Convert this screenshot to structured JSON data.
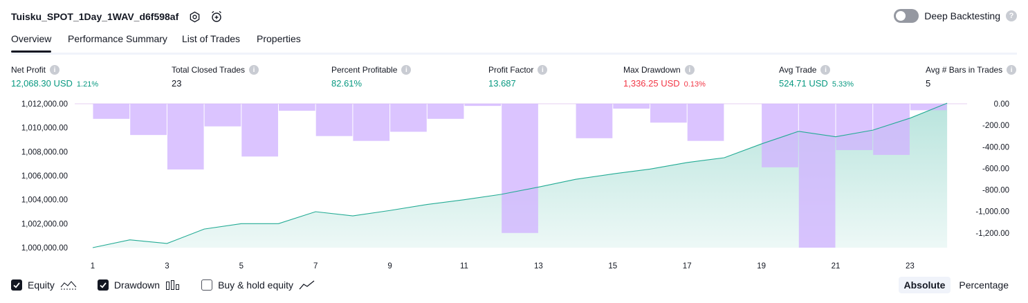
{
  "header": {
    "title": "Tuisku_SPOT_1Day_1WAV_d6f598af",
    "deep_backtesting_label": "Deep Backtesting",
    "help_glyph": "?"
  },
  "tabs": [
    {
      "label": "Overview",
      "active": true
    },
    {
      "label": "Performance Summary",
      "active": false
    },
    {
      "label": "List of Trades",
      "active": false
    },
    {
      "label": "Properties",
      "active": false
    }
  ],
  "metrics": [
    {
      "label": "Net Profit",
      "value": "12,068.30 USD",
      "pct": "1.21%",
      "color": "green"
    },
    {
      "label": "Total Closed Trades",
      "value": "23",
      "pct": "",
      "color": "dark"
    },
    {
      "label": "Percent Profitable",
      "value": "82.61%",
      "pct": "",
      "color": "green"
    },
    {
      "label": "Profit Factor",
      "value": "13.687",
      "pct": "",
      "color": "green"
    },
    {
      "label": "Max Drawdown",
      "value": "1,336.25 USD",
      "pct": "0.13%",
      "color": "red"
    },
    {
      "label": "Avg Trade",
      "value": "524.71 USD",
      "pct": "5.33%",
      "color": "green"
    },
    {
      "label": "Avg # Bars in Trades",
      "value": "5",
      "pct": "",
      "color": "dark"
    }
  ],
  "info_glyph": "i",
  "chart_data": {
    "type": "area",
    "x_ticks": [
      1,
      3,
      5,
      7,
      9,
      11,
      13,
      15,
      17,
      19,
      21,
      23
    ],
    "left_ticks": [
      "1,012,000.00",
      "1,010,000.00",
      "1,008,000.00",
      "1,006,000.00",
      "1,004,000.00",
      "1,002,000.00",
      "1,000,000.00"
    ],
    "left_tick_values": [
      1012000,
      1010000,
      1008000,
      1006000,
      1004000,
      1002000,
      1000000
    ],
    "right_ticks": [
      "0.00",
      "-200.00",
      "-400.00",
      "-600.00",
      "-800.00",
      "-1,000.00",
      "-1,200.00"
    ],
    "right_tick_values": [
      0,
      -200,
      -400,
      -600,
      -800,
      -1000,
      -1200
    ],
    "left_ylim": [
      1000000,
      1012000
    ],
    "right_ylim": [
      -1336.25,
      0
    ],
    "series": [
      {
        "name": "Equity",
        "color": "#22ab94",
        "x": [
          1,
          2,
          3,
          4,
          5,
          6,
          7,
          8,
          9,
          10,
          11,
          12,
          13,
          14,
          15,
          16,
          17,
          18,
          19,
          20,
          21,
          22,
          23,
          24
        ],
        "values": [
          1000000,
          1000650,
          1000350,
          1001550,
          1002000,
          1002000,
          1003000,
          1002650,
          1003100,
          1003600,
          1004000,
          1004450,
          1005050,
          1005700,
          1006150,
          1006550,
          1007100,
          1007500,
          1008650,
          1009700,
          1009250,
          1009800,
          1010800,
          1012050
        ]
      },
      {
        "name": "Drawdown",
        "color": "#d1b3ff",
        "x": [
          2,
          3,
          4,
          5,
          6,
          7,
          8,
          9,
          10,
          11,
          12,
          13,
          14,
          15,
          16,
          17,
          18,
          19,
          20,
          21,
          22,
          23,
          24
        ],
        "values": [
          -140,
          -290,
          -610,
          -210,
          -490,
          -65,
          -300,
          -345,
          -260,
          -140,
          -20,
          -1200,
          0,
          -320,
          -45,
          -175,
          -345,
          0,
          -590,
          -1336.25,
          -430,
          -475,
          -60
        ]
      }
    ]
  },
  "legend": {
    "equity_label": "Equity",
    "drawdown_label": "Drawdown",
    "buyhold_label": "Buy & hold equity",
    "equity_checked": true,
    "drawdown_checked": true,
    "buyhold_checked": false
  },
  "modes": {
    "absolute_label": "Absolute",
    "percentage_label": "Percentage",
    "active": "absolute"
  }
}
